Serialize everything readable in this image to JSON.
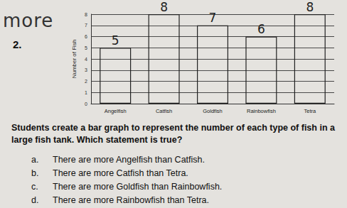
{
  "header": {
    "note": "more",
    "number": "2."
  },
  "chart_data": {
    "type": "bar",
    "categories": [
      "Angelfish",
      "Catfish",
      "Goldfish",
      "Rainbowfish",
      "Tetra"
    ],
    "values": [
      5,
      8,
      7,
      6,
      8
    ],
    "ylabel": "Number of Fish",
    "ylim": [
      0,
      8
    ],
    "yticks": [
      0,
      1,
      2,
      3,
      4,
      5,
      6,
      7,
      8
    ],
    "grid": true,
    "data_labels": true
  },
  "question": {
    "text": "Students create a bar graph to represent the number of each type of fish in a large fish tank. Which statement is true?",
    "options": [
      {
        "letter": "a.",
        "text": "There are more Angelfish than Catfish."
      },
      {
        "letter": "b.",
        "text": "There are more Catfish than Tetra."
      },
      {
        "letter": "c.",
        "text": "There are more Goldfish than Rainbowfish."
      },
      {
        "letter": "d.",
        "text": "There are more Rainbowfish than Tetra."
      }
    ]
  }
}
